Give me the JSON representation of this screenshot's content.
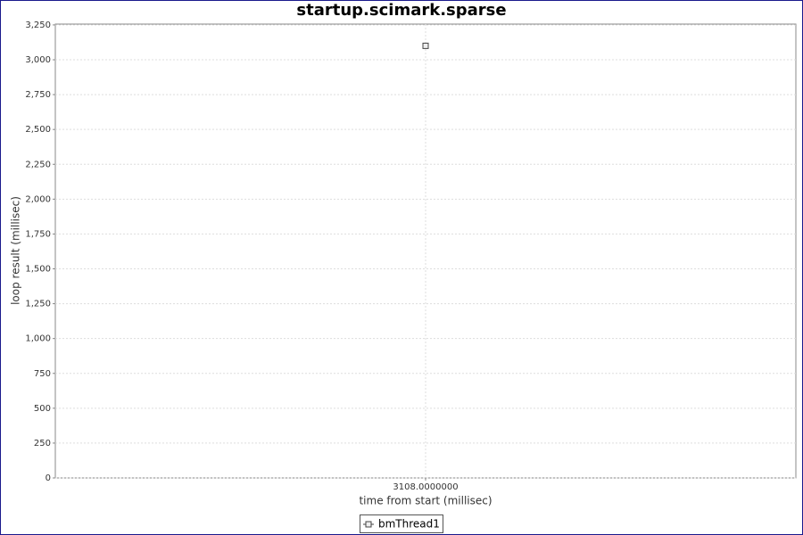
{
  "chart_data": {
    "type": "scatter",
    "title": "startup.scimark.sparse",
    "x_label": "time from start (millisec)",
    "y_label": "loop result (millisec)",
    "x": [
      3108
    ],
    "series": [
      {
        "name": "bmThread1",
        "color": "#444444",
        "values": [
          3100
        ]
      }
    ],
    "xlim": [
      3107,
      3109
    ],
    "xticks": [
      {
        "value": 3108,
        "label": "3108.0000000"
      }
    ],
    "ylim": [
      0,
      3256
    ],
    "yticks": [
      0,
      250,
      500,
      750,
      {
        "value": 1000,
        "label": "1,000"
      },
      {
        "value": 1250,
        "label": "1,250"
      },
      {
        "value": 1500,
        "label": "1,500"
      },
      {
        "value": 1750,
        "label": "1,750"
      },
      {
        "value": 2000,
        "label": "2,000"
      },
      {
        "value": 2250,
        "label": "2,250"
      },
      {
        "value": 2500,
        "label": "2,500"
      },
      {
        "value": 2750,
        "label": "2,750"
      },
      {
        "value": 3000,
        "label": "3,000"
      },
      {
        "value": 3250,
        "label": "3,250"
      }
    ],
    "grid": true,
    "legend": "bottom"
  }
}
